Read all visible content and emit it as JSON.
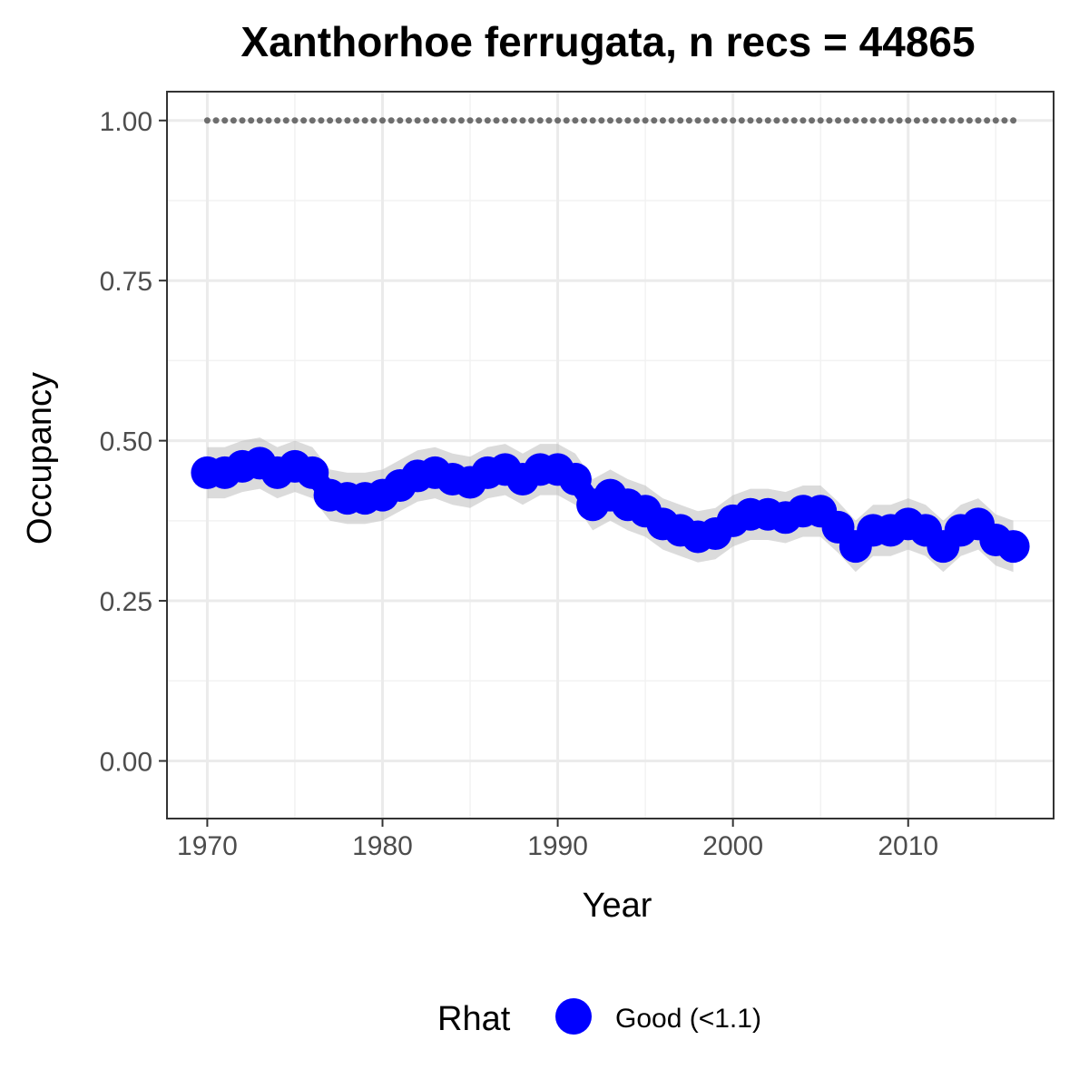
{
  "chart_data": {
    "type": "line",
    "title": "Xanthorhoe ferrugata, n recs = 44865",
    "xlabel": "Year",
    "ylabel": "Occupancy",
    "xlim": [
      1967.7,
      1968.0
    ],
    "ylim": [
      -0.09,
      1.045
    ],
    "x_ticks": [
      1970,
      1980,
      1990,
      2000,
      2010
    ],
    "x_tick_labels": [
      "1970",
      "1980",
      "1990",
      "2000",
      "2010"
    ],
    "y_ticks": [
      0,
      0.25,
      0.5,
      0.75,
      1.0
    ],
    "y_tick_labels": [
      "0.00",
      "0.25",
      "0.50",
      "0.75",
      "1.00"
    ],
    "grid": true,
    "legend": {
      "title": "Rhat",
      "position": "bottom",
      "entries": [
        {
          "label": "Good (<1.1)",
          "color": "#0000ff"
        }
      ]
    },
    "series": [
      {
        "name": "Good (<1.1)",
        "color": "#0000ff",
        "x": [
          1970,
          1971,
          1972,
          1973,
          1974,
          1975,
          1976,
          1977,
          1978,
          1979,
          1980,
          1981,
          1982,
          1983,
          1984,
          1985,
          1986,
          1987,
          1988,
          1989,
          1990,
          1991,
          1992,
          1993,
          1994,
          1995,
          1996,
          1997,
          1998,
          1999,
          2000,
          2001,
          2002,
          2003,
          2004,
          2005,
          2006,
          2007,
          2008,
          2009,
          2010,
          2011,
          2012,
          2013,
          2014,
          2015,
          2016
        ],
        "y": [
          0.45,
          0.45,
          0.46,
          0.465,
          0.45,
          0.46,
          0.45,
          0.415,
          0.41,
          0.41,
          0.415,
          0.43,
          0.445,
          0.45,
          0.44,
          0.435,
          0.45,
          0.455,
          0.44,
          0.455,
          0.455,
          0.44,
          0.4,
          0.415,
          0.4,
          0.39,
          0.37,
          0.36,
          0.35,
          0.355,
          0.375,
          0.385,
          0.385,
          0.38,
          0.39,
          0.39,
          0.365,
          0.335,
          0.36,
          0.36,
          0.37,
          0.36,
          0.335,
          0.36,
          0.37,
          0.345,
          0.335
        ],
        "lower": [
          0.41,
          0.41,
          0.42,
          0.425,
          0.41,
          0.42,
          0.41,
          0.375,
          0.37,
          0.37,
          0.375,
          0.39,
          0.405,
          0.41,
          0.4,
          0.395,
          0.41,
          0.415,
          0.4,
          0.415,
          0.415,
          0.4,
          0.36,
          0.375,
          0.36,
          0.35,
          0.33,
          0.32,
          0.31,
          0.315,
          0.335,
          0.345,
          0.345,
          0.34,
          0.35,
          0.35,
          0.325,
          0.295,
          0.32,
          0.32,
          0.33,
          0.32,
          0.295,
          0.32,
          0.33,
          0.305,
          0.295
        ],
        "upper": [
          0.49,
          0.49,
          0.5,
          0.505,
          0.49,
          0.5,
          0.49,
          0.455,
          0.45,
          0.45,
          0.455,
          0.47,
          0.485,
          0.49,
          0.48,
          0.475,
          0.49,
          0.495,
          0.48,
          0.495,
          0.495,
          0.48,
          0.44,
          0.455,
          0.44,
          0.43,
          0.41,
          0.4,
          0.39,
          0.395,
          0.415,
          0.425,
          0.425,
          0.42,
          0.43,
          0.43,
          0.405,
          0.375,
          0.4,
          0.4,
          0.41,
          0.4,
          0.375,
          0.4,
          0.41,
          0.385,
          0.375
        ]
      },
      {
        "name": "",
        "color": "#6e6e6e",
        "x": [
          1970,
          1971,
          1972,
          1973,
          1974,
          1975,
          1976,
          1977,
          1978,
          1979,
          1980,
          1981,
          1982,
          1983,
          1984,
          1985,
          1986,
          1987,
          1988,
          1989,
          1990,
          1991,
          1992,
          1993,
          1994,
          1995,
          1996,
          1997,
          1998,
          1999,
          2000,
          2001,
          2002,
          2003,
          2004,
          2005,
          2006,
          2007,
          2008,
          2009,
          2010,
          2011,
          2012,
          2013,
          2014,
          2015,
          2016
        ],
        "y": [
          1,
          1,
          1,
          1,
          1,
          1,
          1,
          1,
          1,
          1,
          1,
          1,
          1,
          1,
          1,
          1,
          1,
          1,
          1,
          1,
          1,
          1,
          1,
          1,
          1,
          1,
          1,
          1,
          1,
          1,
          1,
          1,
          1,
          1,
          1,
          1,
          1,
          1,
          1,
          1,
          1,
          1,
          1,
          1,
          1,
          1,
          1
        ]
      }
    ]
  }
}
